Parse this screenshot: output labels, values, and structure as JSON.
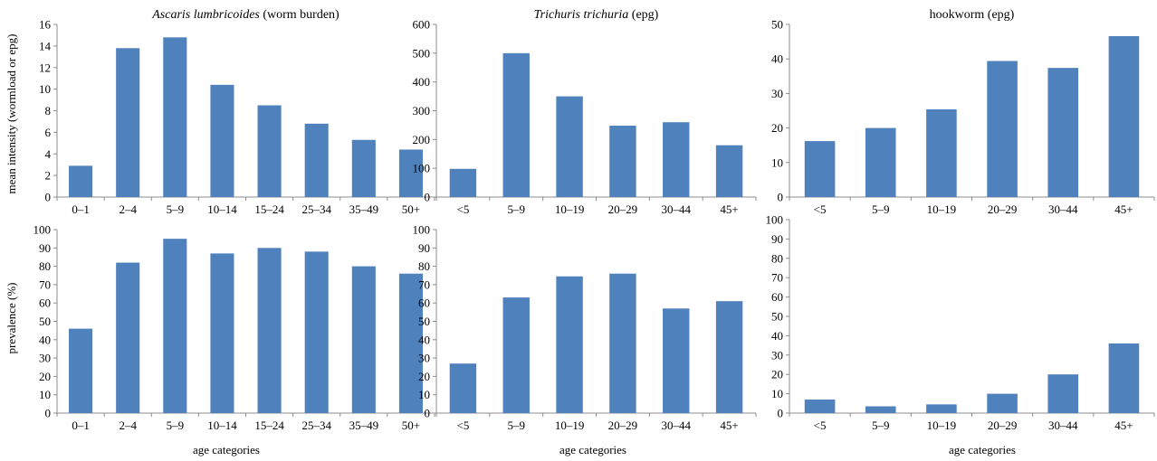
{
  "figure": {
    "ylabel_top": "mean intensity (wormload or epg)",
    "ylabel_bottom": "prevalence (%)",
    "xlabel": "age categories"
  },
  "colors": {
    "bar": "#4f81bd",
    "axis": "#8c8c8c"
  },
  "chart_data": [
    {
      "type": "bar",
      "title_italic": "Ascaris lumbricoides",
      "title_rest": " (worm burden)",
      "categories": [
        "0–1",
        "2–4",
        "5–9",
        "10–14",
        "15–24",
        "25–34",
        "35–49",
        "50+"
      ],
      "values": [
        2.9,
        13.8,
        14.8,
        10.4,
        8.5,
        6.8,
        5.3,
        4.4
      ],
      "ylim": [
        0,
        16
      ],
      "yticks": [
        0,
        2,
        4,
        6,
        8,
        10,
        12,
        14,
        16
      ]
    },
    {
      "type": "bar",
      "title_italic": "Trichuris trichuria",
      "title_rest": " (epg)",
      "categories": [
        "<5",
        "5–9",
        "10–19",
        "20–29",
        "30–44",
        "45+"
      ],
      "values": [
        98,
        500,
        350,
        248,
        260,
        180
      ],
      "ylim": [
        0,
        600
      ],
      "yticks": [
        0,
        100,
        200,
        300,
        400,
        500,
        600
      ]
    },
    {
      "type": "bar",
      "title_italic": "",
      "title_rest": "hookworm (epg)",
      "categories": [
        "<5",
        "5–9",
        "10–19",
        "20–29",
        "30–44",
        "45+"
      ],
      "values": [
        16.2,
        20,
        25.4,
        39.4,
        37.4,
        46.6
      ],
      "ylim": [
        0,
        50
      ],
      "yticks": [
        0,
        10,
        20,
        30,
        40,
        50
      ]
    },
    {
      "type": "bar",
      "categories": [
        "0–1",
        "2–4",
        "5–9",
        "10–14",
        "15–24",
        "25–34",
        "35–49",
        "50+"
      ],
      "values": [
        46,
        82,
        95,
        87,
        90,
        88,
        80,
        76
      ],
      "ylim": [
        0,
        100
      ],
      "yticks": [
        0,
        10,
        20,
        30,
        40,
        50,
        60,
        70,
        80,
        90,
        100
      ]
    },
    {
      "type": "bar",
      "categories": [
        "<5",
        "5–9",
        "10–19",
        "20–29",
        "30–44",
        "45+"
      ],
      "values": [
        27,
        63,
        74.5,
        76,
        57,
        61
      ],
      "ylim": [
        0,
        100
      ],
      "yticks": [
        0,
        10,
        20,
        30,
        40,
        50,
        60,
        70,
        80,
        90,
        100
      ]
    },
    {
      "type": "bar",
      "categories": [
        "<5",
        "5–9",
        "10–19",
        "20–29",
        "30–44",
        "45+"
      ],
      "values": [
        7,
        3.5,
        4.5,
        10,
        20,
        36
      ],
      "ylim": [
        0,
        100
      ],
      "yticks": [
        0,
        10,
        20,
        30,
        40,
        50,
        60,
        70,
        80,
        90,
        100
      ]
    }
  ]
}
